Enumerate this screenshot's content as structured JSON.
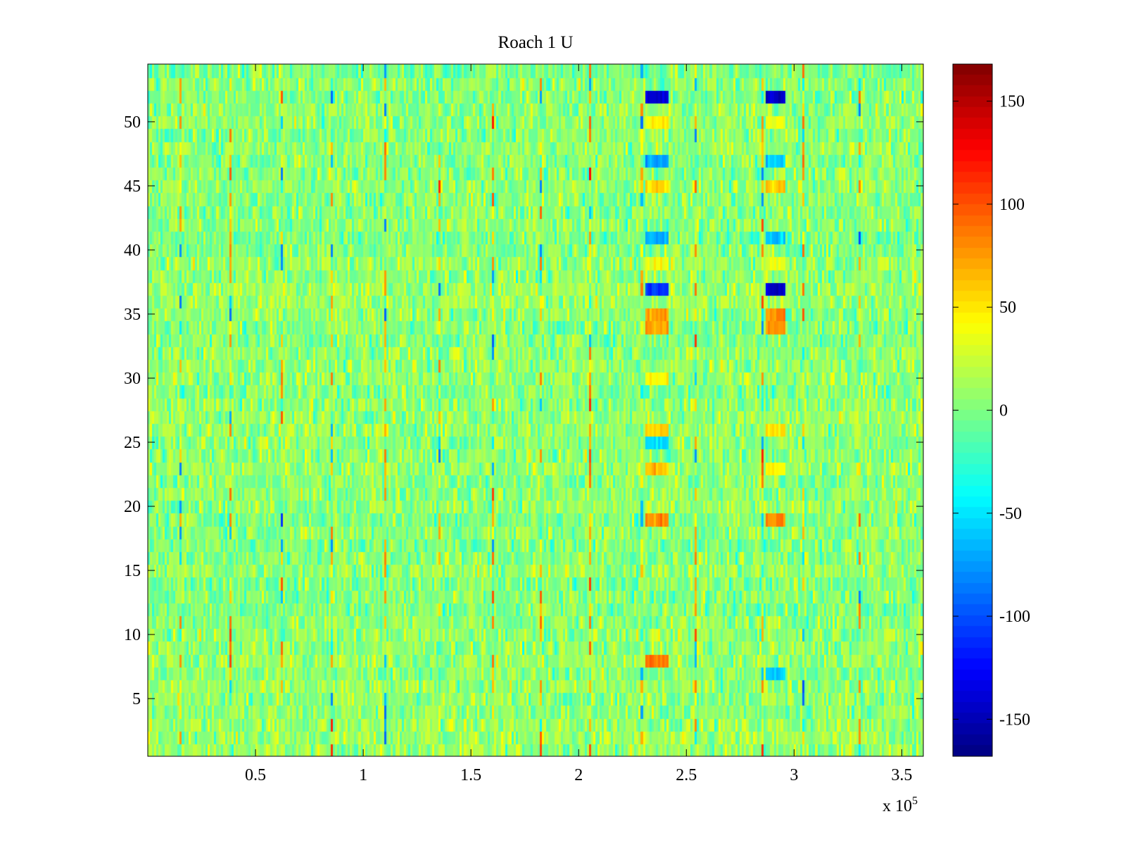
{
  "chart_data": {
    "type": "heatmap",
    "title": "Roach 1 U",
    "xlabel": "",
    "ylabel": "",
    "x_exponent_label": "x 10",
    "x_exponent_power": "5",
    "xlim": [
      0,
      3.6
    ],
    "ylim": [
      0.5,
      54.5
    ],
    "x_ticks": [
      0.5,
      1,
      1.5,
      2,
      2.5,
      3,
      3.5
    ],
    "x_tick_labels": [
      "0.5",
      "1",
      "1.5",
      "2",
      "2.5",
      "3",
      "3.5"
    ],
    "y_ticks": [
      5,
      10,
      15,
      20,
      25,
      30,
      35,
      40,
      45,
      50
    ],
    "y_tick_labels": [
      "5",
      "10",
      "15",
      "20",
      "25",
      "30",
      "35",
      "40",
      "45",
      "50"
    ],
    "n_rows": 54,
    "n_cols_rendered": 360,
    "colormap": "jet",
    "clim": [
      -168,
      168
    ],
    "colorbar": {
      "ticks": [
        -150,
        -100,
        -50,
        0,
        50,
        100,
        150
      ],
      "tick_labels": [
        "-150",
        "-100",
        "-50",
        "0",
        "50",
        "100",
        "150"
      ]
    },
    "background_level": {
      "mean": 5,
      "spread": 22
    },
    "highlighted_blocks": [
      {
        "x_range": [
          2.32,
          2.42
        ],
        "rows": [
          52
        ],
        "value": -140
      },
      {
        "x_range": [
          2.87,
          2.95
        ],
        "rows": [
          52
        ],
        "value": -140
      },
      {
        "x_range": [
          2.32,
          2.42
        ],
        "rows": [
          50
        ],
        "value": 45
      },
      {
        "x_range": [
          2.87,
          2.95
        ],
        "rows": [
          50
        ],
        "value": 35
      },
      {
        "x_range": [
          2.32,
          2.42
        ],
        "rows": [
          47
        ],
        "value": -75
      },
      {
        "x_range": [
          2.87,
          2.95
        ],
        "rows": [
          47
        ],
        "value": -60
      },
      {
        "x_range": [
          2.32,
          2.42
        ],
        "rows": [
          45
        ],
        "value": 55
      },
      {
        "x_range": [
          2.87,
          2.95
        ],
        "rows": [
          45
        ],
        "value": 60
      },
      {
        "x_range": [
          2.32,
          2.42
        ],
        "rows": [
          41
        ],
        "value": -60
      },
      {
        "x_range": [
          2.87,
          2.95
        ],
        "rows": [
          41
        ],
        "value": -60
      },
      {
        "x_range": [
          2.32,
          2.42
        ],
        "rows": [
          39
        ],
        "value": 40
      },
      {
        "x_range": [
          2.87,
          2.95
        ],
        "rows": [
          39
        ],
        "value": 35
      },
      {
        "x_range": [
          2.32,
          2.42
        ],
        "rows": [
          37
        ],
        "value": -110
      },
      {
        "x_range": [
          2.87,
          2.95
        ],
        "rows": [
          37
        ],
        "value": -140
      },
      {
        "x_range": [
          2.32,
          2.42
        ],
        "rows": [
          34,
          35
        ],
        "value": 75
      },
      {
        "x_range": [
          2.87,
          2.95
        ],
        "rows": [
          34,
          35
        ],
        "value": 80
      },
      {
        "x_range": [
          2.32,
          2.42
        ],
        "rows": [
          30
        ],
        "value": 40
      },
      {
        "x_range": [
          2.32,
          2.42
        ],
        "rows": [
          26
        ],
        "value": 60
      },
      {
        "x_range": [
          2.87,
          2.95
        ],
        "rows": [
          26
        ],
        "value": 50
      },
      {
        "x_range": [
          2.32,
          2.42
        ],
        "rows": [
          25
        ],
        "value": -55
      },
      {
        "x_range": [
          2.32,
          2.42
        ],
        "rows": [
          23
        ],
        "value": 65
      },
      {
        "x_range": [
          2.87,
          2.95
        ],
        "rows": [
          23
        ],
        "value": 45
      },
      {
        "x_range": [
          2.32,
          2.42
        ],
        "rows": [
          19
        ],
        "value": 80
      },
      {
        "x_range": [
          2.87,
          2.95
        ],
        "rows": [
          19
        ],
        "value": 80
      },
      {
        "x_range": [
          2.32,
          2.42
        ],
        "rows": [
          8
        ],
        "value": 85
      },
      {
        "x_range": [
          2.87,
          2.95
        ],
        "rows": [
          7
        ],
        "value": -60
      }
    ],
    "vertical_spikes_x": [
      0.15,
      0.38,
      0.62,
      0.85,
      1.1,
      1.35,
      1.6,
      1.82,
      2.05,
      2.3,
      2.55,
      2.85,
      3.05,
      3.3
    ]
  }
}
